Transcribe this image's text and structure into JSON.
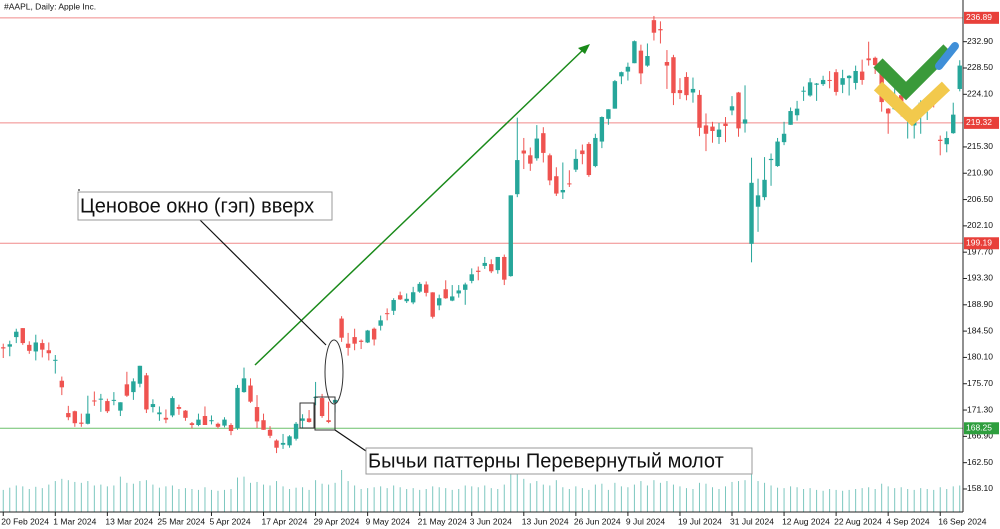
{
  "chart_data": {
    "type": "candlestick",
    "title": "#AAPL, Daily:  Apple Inc.",
    "annotations": [
      "Ценовое окно (гэп) вверх",
      "Бычьи паттерны Перевернутый молот"
    ],
    "up_color": "#26a69a",
    "down_color": "#ef5350",
    "volume_color": "#7cc7bf",
    "ylim": [
      154.25,
      239.87
    ],
    "xlim": [
      -0.5,
      147.5
    ],
    "yticks": [
      {
        "value": 158.1,
        "label": "158.10"
      },
      {
        "value": 162.5,
        "label": "162.50"
      },
      {
        "value": 166.9,
        "label": "166.90"
      },
      {
        "value": 171.3,
        "label": "171.30"
      },
      {
        "value": 175.7,
        "label": "175.70"
      },
      {
        "value": 180.1,
        "label": "180.10"
      },
      {
        "value": 184.5,
        "label": "184.50"
      },
      {
        "value": 188.9,
        "label": "188.90"
      },
      {
        "value": 193.3,
        "label": "193.30"
      },
      {
        "value": 197.7,
        "label": "197.70"
      },
      {
        "value": 202.1,
        "label": "202.10"
      },
      {
        "value": 206.5,
        "label": "206.50"
      },
      {
        "value": 210.9,
        "label": "210.90"
      },
      {
        "value": 215.3,
        "label": "215.30"
      },
      {
        "value": 224.1,
        "label": "224.10"
      },
      {
        "value": 228.5,
        "label": "228.50"
      },
      {
        "value": 232.9,
        "label": "232.90"
      }
    ],
    "xticks": [
      {
        "value": 0,
        "label": "20 Feb 2024"
      },
      {
        "value": 8,
        "label": "1 Mar 2024"
      },
      {
        "value": 16,
        "label": "13 Mar 2024"
      },
      {
        "value": 24,
        "label": "25 Mar 2024"
      },
      {
        "value": 32,
        "label": "5 Apr 2024"
      },
      {
        "value": 40,
        "label": "17 Apr 2024"
      },
      {
        "value": 48,
        "label": "29 Apr 2024"
      },
      {
        "value": 56,
        "label": "9 May 2024"
      },
      {
        "value": 64,
        "label": "21 May 2024"
      },
      {
        "value": 72,
        "label": "3 Jun 2024"
      },
      {
        "value": 80,
        "label": "13 Jun 2024"
      },
      {
        "value": 88,
        "label": "26 Jun 2024"
      },
      {
        "value": 96,
        "label": "9 Jul 2024"
      },
      {
        "value": 104,
        "label": "19 Jul 2024"
      },
      {
        "value": 112,
        "label": "31 Jul 2024"
      },
      {
        "value": 120,
        "label": "12 Aug 2024"
      },
      {
        "value": 128,
        "label": "22 Aug 2024"
      },
      {
        "value": 136,
        "label": "4 Sep 2024"
      },
      {
        "value": 144,
        "label": "16 Sep 2024"
      }
    ],
    "levels": [
      {
        "value": 236.89,
        "color": "#f08a8a",
        "label_color": "#e8403a"
      },
      {
        "value": 219.32,
        "color": "#f08a8a",
        "label_color": "#e8403a"
      },
      {
        "value": 199.19,
        "color": "#f08a8a",
        "label_color": "#e8403a"
      },
      {
        "value": 168.25,
        "color": "#6cc06c",
        "label_color": "#2e9e3e"
      }
    ],
    "candles": [
      [
        181.8,
        182.4,
        180.0,
        181.6
      ],
      [
        181.9,
        182.9,
        180.3,
        182.3
      ],
      [
        183.5,
        184.9,
        182.5,
        184.4
      ],
      [
        185.0,
        185.0,
        182.2,
        182.5
      ],
      [
        182.2,
        182.8,
        180.7,
        181.2
      ],
      [
        181.1,
        183.9,
        179.6,
        182.6
      ],
      [
        182.5,
        183.1,
        180.1,
        181.4
      ],
      [
        181.3,
        182.6,
        179.6,
        180.8
      ],
      [
        179.6,
        180.5,
        177.4,
        179.7
      ],
      [
        176.2,
        176.9,
        173.8,
        175.1
      ],
      [
        170.8,
        172.0,
        169.6,
        170.1
      ],
      [
        171.1,
        171.2,
        168.5,
        169.1
      ],
      [
        169.2,
        170.7,
        168.5,
        169.0
      ],
      [
        169.0,
        173.7,
        168.9,
        170.7
      ],
      [
        172.9,
        174.4,
        172.0,
        172.8
      ],
      [
        173.2,
        174.0,
        171.0,
        173.2
      ],
      [
        172.8,
        173.2,
        170.8,
        171.1
      ],
      [
        172.9,
        174.3,
        172.1,
        173.0
      ],
      [
        171.2,
        172.6,
        170.3,
        172.6
      ],
      [
        175.6,
        177.7,
        173.5,
        173.7
      ],
      [
        174.3,
        176.6,
        173.0,
        176.1
      ],
      [
        175.7,
        178.7,
        175.1,
        178.7
      ],
      [
        177.1,
        177.5,
        170.8,
        171.4
      ],
      [
        171.8,
        173.1,
        170.9,
        172.3
      ],
      [
        170.6,
        171.9,
        169.5,
        170.9
      ],
      [
        170.0,
        171.4,
        169.1,
        169.7
      ],
      [
        170.4,
        173.6,
        170.1,
        173.3
      ],
      [
        171.8,
        172.2,
        170.5,
        171.5
      ],
      [
        171.2,
        171.3,
        169.5,
        170.0
      ],
      [
        169.1,
        169.3,
        168.2,
        168.8
      ],
      [
        168.8,
        170.7,
        168.6,
        169.7
      ],
      [
        170.3,
        171.9,
        168.8,
        168.8
      ],
      [
        169.6,
        170.4,
        168.9,
        169.6
      ],
      [
        169.0,
        169.2,
        168.2,
        168.5
      ],
      [
        168.7,
        170.1,
        168.4,
        169.7
      ],
      [
        168.8,
        169.1,
        167.1,
        167.8
      ],
      [
        168.3,
        175.5,
        168.0,
        175.0
      ],
      [
        174.3,
        178.4,
        174.2,
        176.6
      ],
      [
        175.4,
        176.6,
        172.5,
        172.7
      ],
      [
        171.8,
        173.8,
        168.3,
        169.4
      ],
      [
        169.6,
        170.7,
        168.0,
        168.0
      ],
      [
        168.0,
        168.6,
        166.6,
        167.0
      ],
      [
        166.2,
        166.4,
        164.1,
        165.0
      ],
      [
        165.5,
        167.3,
        164.8,
        165.8
      ],
      [
        165.4,
        167.1,
        165.0,
        166.9
      ],
      [
        166.5,
        169.3,
        166.2,
        169.0
      ],
      [
        169.5,
        170.6,
        168.2,
        169.9
      ],
      [
        169.9,
        171.3,
        169.2,
        169.3
      ],
      [
        173.4,
        176.0,
        172.1,
        173.5
      ],
      [
        173.3,
        174.0,
        170.0,
        170.3
      ],
      [
        169.6,
        172.7,
        169.1,
        169.3
      ],
      [
        172.5,
        173.4,
        170.9,
        173.0
      ],
      [
        186.6,
        187.0,
        182.7,
        183.4
      ],
      [
        182.4,
        184.2,
        180.4,
        181.7
      ],
      [
        183.5,
        184.9,
        181.3,
        182.4
      ],
      [
        182.9,
        183.1,
        181.5,
        182.7
      ],
      [
        182.6,
        184.7,
        182.5,
        184.6
      ],
      [
        184.9,
        185.1,
        182.1,
        183.1
      ],
      [
        185.4,
        187.1,
        184.6,
        186.3
      ],
      [
        187.5,
        188.3,
        186.3,
        187.4
      ],
      [
        187.9,
        190.0,
        187.2,
        189.7
      ],
      [
        190.5,
        191.1,
        189.7,
        189.8
      ],
      [
        189.5,
        190.8,
        189.2,
        189.9
      ],
      [
        189.3,
        191.9,
        189.0,
        191.0
      ],
      [
        191.1,
        192.7,
        190.9,
        192.4
      ],
      [
        192.3,
        192.8,
        190.3,
        190.9
      ],
      [
        190.98,
        191.0,
        186.6,
        186.9
      ],
      [
        188.8,
        190.6,
        188.0,
        190.0
      ],
      [
        191.5,
        193.0,
        189.9,
        189.99
      ],
      [
        189.6,
        192.2,
        189.5,
        190.3
      ],
      [
        190.8,
        192.2,
        190.1,
        191.3
      ],
      [
        191.4,
        192.6,
        188.9,
        192.3
      ],
      [
        192.9,
        194.99,
        192.5,
        194.0
      ],
      [
        194.6,
        195.3,
        193.0,
        194.4
      ],
      [
        195.4,
        196.9,
        194.9,
        195.9
      ],
      [
        195.7,
        196.5,
        194.2,
        194.5
      ],
      [
        194.7,
        196.9,
        194.1,
        196.9
      ],
      [
        196.9,
        197.3,
        192.2,
        193.1
      ],
      [
        193.7,
        207.2,
        193.6,
        207.2
      ],
      [
        207.4,
        220.2,
        206.9,
        213.1
      ],
      [
        214.7,
        216.8,
        211.6,
        214.2
      ],
      [
        213.9,
        215.2,
        211.3,
        212.5
      ],
      [
        213.4,
        218.95,
        213.0,
        216.7
      ],
      [
        217.6,
        218.6,
        212.7,
        214.3
      ],
      [
        213.9,
        214.2,
        208.9,
        209.7
      ],
      [
        210.4,
        211.9,
        207.1,
        207.5
      ],
      [
        207.7,
        212.7,
        206.6,
        208.1
      ],
      [
        209.2,
        211.4,
        208.6,
        209.1
      ],
      [
        211.5,
        214.9,
        211.1,
        213.3
      ],
      [
        214.7,
        215.7,
        212.4,
        214.1
      ],
      [
        215.8,
        216.1,
        210.3,
        210.6
      ],
      [
        212.1,
        217.5,
        211.9,
        216.8
      ],
      [
        216.2,
        220.4,
        215.1,
        220.3
      ],
      [
        220.0,
        221.6,
        219.0,
        221.6
      ],
      [
        221.7,
        226.5,
        221.7,
        226.3
      ],
      [
        227.1,
        227.9,
        225.8,
        227.8
      ],
      [
        227.9,
        229.4,
        226.4,
        228.7
      ],
      [
        229.3,
        233.1,
        229.3,
        232.98
      ],
      [
        231.4,
        232.4,
        225.8,
        227.6
      ],
      [
        228.9,
        232.6,
        228.7,
        230.5
      ],
      [
        236.5,
        237.2,
        233.1,
        234.4
      ],
      [
        235.0,
        236.3,
        232.6,
        234.8
      ],
      [
        229.5,
        231.5,
        225.0,
        228.9
      ],
      [
        230.3,
        230.7,
        222.3,
        224.3
      ],
      [
        224.8,
        226.8,
        223.3,
        224.3
      ],
      [
        227.0,
        227.8,
        223.1,
        223.96
      ],
      [
        224.4,
        226.9,
        222.7,
        225.0
      ],
      [
        224.0,
        224.8,
        217.1,
        218.5
      ],
      [
        218.9,
        220.9,
        214.6,
        217.5
      ],
      [
        218.7,
        219.5,
        216.0,
        217.96
      ],
      [
        216.96,
        219.3,
        215.8,
        218.2
      ],
      [
        219.2,
        220.3,
        216.1,
        218.8
      ],
      [
        221.4,
        223.8,
        220.6,
        222.1
      ],
      [
        224.4,
        224.5,
        217.0,
        218.4
      ],
      [
        219.2,
        225.6,
        217.7,
        219.9
      ],
      [
        199.1,
        213.5,
        196.0,
        209.3
      ],
      [
        205.3,
        209.99,
        201.1,
        207.2
      ],
      [
        206.9,
        213.6,
        206.4,
        209.8
      ],
      [
        213.1,
        214.2,
        208.8,
        213.3
      ],
      [
        212.1,
        216.8,
        211.97,
        216.2
      ],
      [
        216.1,
        219.5,
        215.6,
        217.5
      ],
      [
        219.0,
        221.9,
        219.0,
        221.3
      ],
      [
        220.6,
        223.0,
        219.7,
        221.7
      ],
      [
        224.6,
        225.4,
        223.0,
        224.7
      ],
      [
        223.9,
        226.8,
        223.7,
        226.1
      ],
      [
        225.7,
        225.99,
        223.0,
        225.9
      ],
      [
        225.8,
        227.2,
        225.5,
        226.5
      ],
      [
        226.5,
        227.98,
        225.1,
        226.4
      ],
      [
        227.8,
        228.3,
        223.9,
        224.5
      ],
      [
        225.7,
        228.2,
        224.3,
        226.8
      ],
      [
        226.8,
        227.3,
        223.9,
        227.2
      ],
      [
        226.0,
        228.9,
        224.9,
        228.0
      ],
      [
        227.9,
        229.9,
        225.7,
        226.5
      ],
      [
        230.1,
        232.9,
        228.9,
        229.8
      ],
      [
        230.2,
        230.4,
        227.5,
        229.0
      ],
      [
        228.6,
        229.0,
        221.2,
        222.8
      ],
      [
        221.7,
        221.8,
        217.5,
        220.9
      ],
      [
        221.6,
        225.5,
        221.5,
        222.4
      ],
      [
        223.95,
        225.2,
        220.4,
        220.8
      ],
      [
        220.8,
        221.3,
        216.7,
        220.9
      ],
      [
        218.9,
        221.5,
        216.7,
        220.1
      ],
      [
        221.5,
        223.1,
        217.5,
        222.7
      ],
      [
        222.5,
        223.6,
        219.8,
        222.8
      ],
      [
        223.6,
        224.0,
        221.9,
        222.5
      ],
      [
        216.5,
        217.2,
        213.9,
        216.3
      ],
      [
        215.75,
        217.9,
        214.4,
        216.8
      ],
      [
        217.6,
        222.7,
        217.5,
        220.7
      ],
      [
        224.99,
        229.8,
        224.6,
        228.9
      ]
    ],
    "volumes": [
      50,
      55,
      60,
      58,
      52,
      57,
      54,
      62,
      70,
      75,
      72,
      68,
      66,
      70,
      60,
      62,
      58,
      60,
      80,
      66,
      64,
      70,
      72,
      62,
      55,
      58,
      60,
      52,
      54,
      52,
      50,
      56,
      50,
      48,
      50,
      52,
      78,
      80,
      66,
      68,
      62,
      60,
      70,
      58,
      52,
      55,
      56,
      50,
      72,
      64,
      62,
      66,
      95,
      70,
      60,
      52,
      54,
      56,
      58,
      54,
      60,
      56,
      52,
      54,
      50,
      52,
      58,
      56,
      54,
      50,
      52,
      60,
      58,
      56,
      60,
      54,
      52,
      62,
      88,
      90,
      75,
      65,
      70,
      62,
      60,
      72,
      56,
      52,
      58,
      54,
      50,
      62,
      64,
      50,
      66,
      58,
      56,
      62,
      70,
      60,
      72,
      66,
      70,
      62,
      58,
      54,
      52,
      66,
      64,
      56,
      52,
      58,
      68,
      70,
      72,
      85,
      70,
      66,
      60,
      55,
      54,
      58,
      56,
      52,
      54,
      50,
      48,
      52,
      50,
      48,
      50,
      52,
      54,
      56,
      52,
      64,
      58,
      54,
      56,
      52,
      50,
      54,
      52,
      50,
      56,
      52,
      58,
      60
    ]
  }
}
